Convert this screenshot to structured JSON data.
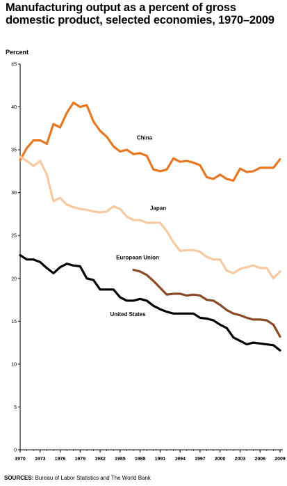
{
  "chart_data": {
    "type": "line",
    "title": "Manufacturing output as a percent of gross domestic product, selected economies, 1970–2009",
    "ylabel": "Percent",
    "xlabel": "",
    "ylim": [
      0,
      45
    ],
    "xlim": [
      1970,
      2009
    ],
    "yticks": [
      "0",
      "5",
      "10",
      "15",
      "20",
      "25",
      "30",
      "35",
      "40",
      "45"
    ],
    "xticks": [
      "1970",
      "1973",
      "1976",
      "1979",
      "1982",
      "1985",
      "1988",
      "1991",
      "1994",
      "1997",
      "2000",
      "2003",
      "2006",
      "2009"
    ],
    "grid": false,
    "legend": "inline labels",
    "series": [
      {
        "name": "China",
        "color": "#e87722",
        "x": [
          1970,
          1971,
          1972,
          1973,
          1974,
          1975,
          1976,
          1977,
          1978,
          1979,
          1980,
          1981,
          1982,
          1983,
          1984,
          1985,
          1986,
          1987,
          1988,
          1989,
          1990,
          1991,
          1992,
          1993,
          1994,
          1995,
          1996,
          1997,
          1998,
          1999,
          2000,
          2001,
          2002,
          2003,
          2004,
          2005,
          2006,
          2007,
          2008,
          2009
        ],
        "values": [
          33.8,
          35.2,
          36.1,
          36.1,
          35.7,
          38.0,
          37.6,
          39.3,
          40.5,
          40.0,
          40.2,
          38.3,
          37.2,
          36.5,
          35.4,
          34.8,
          35.0,
          34.5,
          34.6,
          34.3,
          32.7,
          32.5,
          32.7,
          34.0,
          33.6,
          33.7,
          33.5,
          33.2,
          31.8,
          31.6,
          32.1,
          31.6,
          31.4,
          32.8,
          32.4,
          32.5,
          32.9,
          32.9,
          32.9,
          33.9
        ]
      },
      {
        "name": "Japan",
        "color": "#f7c9a1",
        "x": [
          1970,
          1971,
          1972,
          1973,
          1974,
          1975,
          1976,
          1977,
          1978,
          1979,
          1980,
          1981,
          1982,
          1983,
          1984,
          1985,
          1986,
          1987,
          1988,
          1989,
          1990,
          1991,
          1992,
          1993,
          1994,
          1995,
          1996,
          1997,
          1998,
          1999,
          2000,
          2001,
          2002,
          2003,
          2004,
          2005,
          2006,
          2007,
          2008,
          2009
        ],
        "values": [
          34.2,
          33.7,
          33.1,
          33.7,
          32.1,
          29.0,
          29.4,
          28.6,
          28.3,
          28.1,
          28.0,
          27.8,
          27.7,
          27.8,
          28.4,
          28.1,
          27.2,
          26.8,
          26.8,
          26.5,
          26.5,
          26.5,
          25.5,
          24.2,
          23.2,
          23.3,
          23.3,
          23.1,
          22.5,
          22.2,
          22.2,
          20.9,
          20.6,
          21.1,
          21.3,
          21.5,
          21.2,
          21.2,
          20.0,
          20.8
        ]
      },
      {
        "name": "European Union",
        "color": "#8b4a26",
        "x": [
          1987,
          1988,
          1989,
          1990,
          1991,
          1992,
          1993,
          1994,
          1995,
          1996,
          1997,
          1998,
          1999,
          2000,
          2001,
          2002,
          2003,
          2004,
          2005,
          2006,
          2007,
          2008,
          2009
        ],
        "values": [
          21.0,
          20.8,
          20.4,
          19.7,
          18.9,
          18.1,
          18.2,
          18.2,
          18.0,
          18.1,
          18.0,
          17.5,
          17.4,
          16.9,
          16.3,
          15.9,
          15.7,
          15.4,
          15.2,
          15.2,
          15.1,
          14.6,
          13.2
        ]
      },
      {
        "name": "United States",
        "color": "#000000",
        "x": [
          1970,
          1971,
          1972,
          1973,
          1974,
          1975,
          1976,
          1977,
          1978,
          1979,
          1980,
          1981,
          1982,
          1983,
          1984,
          1985,
          1986,
          1987,
          1988,
          1989,
          1990,
          1991,
          1992,
          1993,
          1994,
          1995,
          1996,
          1997,
          1998,
          1999,
          2000,
          2001,
          2002,
          2003,
          2004,
          2005,
          2006,
          2007,
          2008,
          2009
        ],
        "values": [
          22.7,
          22.2,
          22.2,
          21.9,
          21.2,
          20.6,
          21.3,
          21.7,
          21.5,
          21.4,
          20.0,
          19.8,
          18.7,
          18.7,
          18.7,
          17.8,
          17.4,
          17.4,
          17.6,
          17.4,
          16.8,
          16.4,
          16.1,
          15.9,
          15.9,
          15.9,
          15.9,
          15.4,
          15.3,
          15.1,
          14.6,
          14.2,
          13.1,
          12.7,
          12.3,
          12.5,
          12.4,
          12.3,
          12.2,
          11.6
        ]
      }
    ],
    "labels": {
      "china": "China",
      "japan": "Japan",
      "eu": "European Union",
      "us": "United States"
    },
    "source_label": "SOURCES:",
    "source_text": "Bureau of Labor Statistics and The World Bank"
  }
}
